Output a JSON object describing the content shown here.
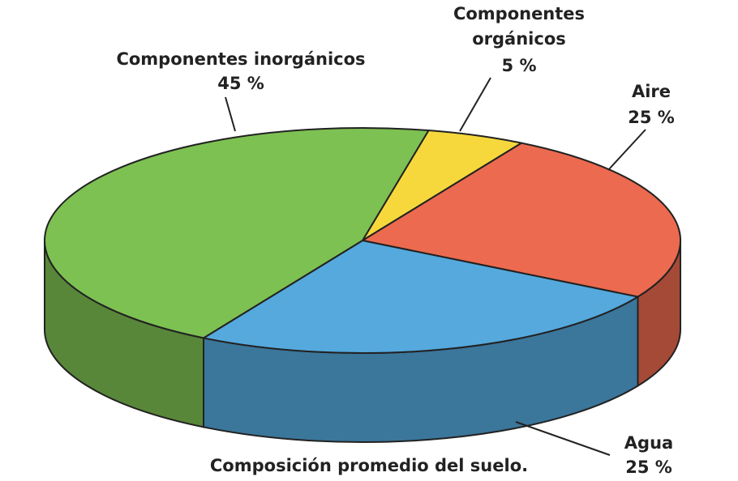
{
  "chart_data": {
    "type": "pie3d",
    "title": "Composición promedio del suelo.",
    "categories": [
      "Componentes orgánicos",
      "Aire",
      "Agua",
      "Componentes inorgánicos"
    ],
    "values": [
      5,
      25,
      25,
      45
    ],
    "value_labels": [
      "5 %",
      "25 %",
      "25 %",
      "45 %"
    ],
    "colors": [
      "#f6d83c",
      "#ec6a4f",
      "#55a9dd",
      "#7dc152"
    ]
  }
}
